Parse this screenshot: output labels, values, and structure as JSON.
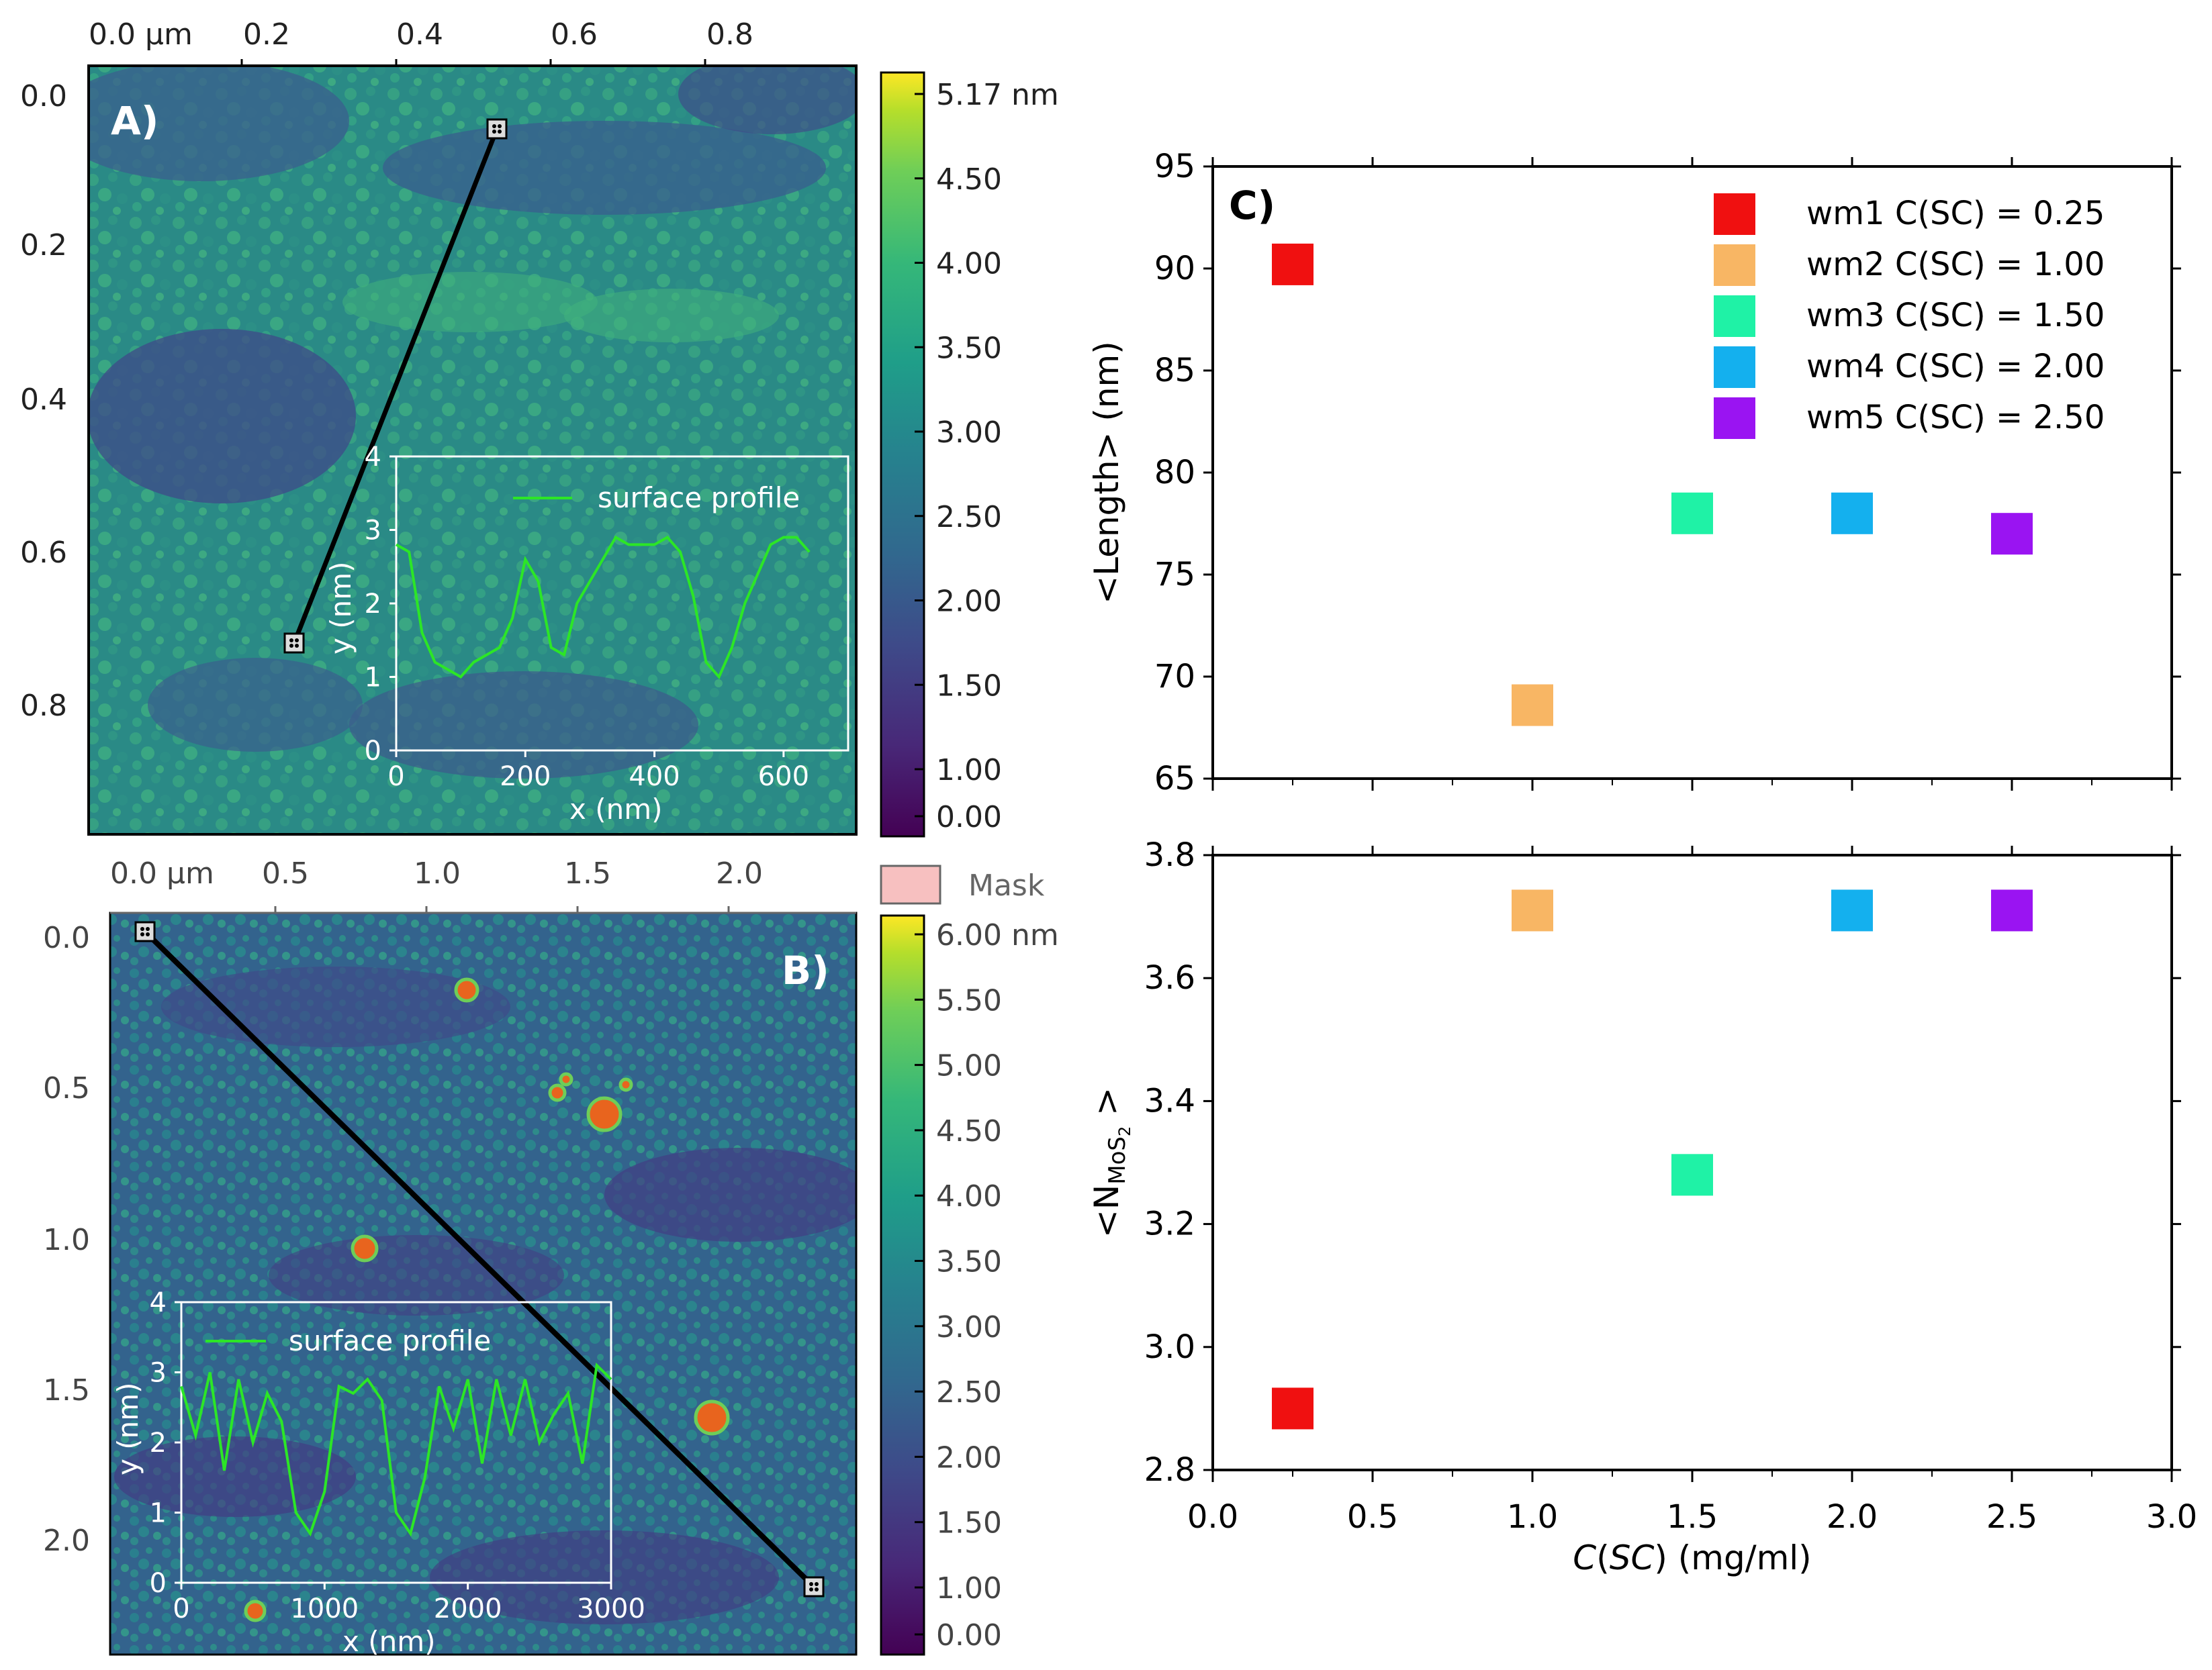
{
  "panel_a": {
    "label": "A)",
    "x_ticks": [
      "0.0 µm",
      "0.2",
      "0.4",
      "0.6",
      "0.8"
    ],
    "y_ticks": [
      "0.0",
      "0.2",
      "0.4",
      "0.6",
      "0.8"
    ],
    "colorbar_ticks": [
      "5.17 nm",
      "4.50",
      "4.00",
      "3.50",
      "3.00",
      "2.50",
      "2.00",
      "1.50",
      "1.00",
      "0.00"
    ],
    "inset": {
      "legend": "surface profile",
      "xlabel": "x (nm)",
      "ylabel": "y (nm)",
      "x_ticks": [
        "0",
        "200",
        "400",
        "600"
      ],
      "y_ticks": [
        "0",
        "1",
        "2",
        "3",
        "4"
      ]
    }
  },
  "panel_b": {
    "label": "B)",
    "x_ticks": [
      "0.0 µm",
      "0.5",
      "1.0",
      "1.5",
      "2.0"
    ],
    "y_ticks": [
      "0.0",
      "0.5",
      "1.0",
      "1.5",
      "2.0"
    ],
    "mask_label": "Mask",
    "colorbar_ticks": [
      "6.00 nm",
      "5.50",
      "5.00",
      "4.50",
      "4.00",
      "3.50",
      "3.00",
      "2.50",
      "2.00",
      "1.50",
      "1.00",
      "0.00"
    ],
    "inset": {
      "legend": "surface profile",
      "xlabel": "x (nm)",
      "ylabel": "y (nm)",
      "x_ticks": [
        "0",
        "1000",
        "2000",
        "3000"
      ],
      "y_ticks": [
        "0",
        "1",
        "2",
        "3",
        "4"
      ]
    }
  },
  "panel_c": {
    "label": "C)",
    "xlabel": "C(SC) (mg/ml)",
    "top_ylabel": "<Length> (nm)",
    "bottom_ylabel": "<N_MoS2>",
    "x_ticks": [
      "0.0",
      "0.5",
      "1.0",
      "1.5",
      "2.0",
      "2.5",
      "3.0"
    ],
    "top_y_ticks": [
      "65",
      "70",
      "75",
      "80",
      "85",
      "90",
      "95"
    ],
    "bottom_y_ticks": [
      "2.8",
      "3.0",
      "3.2",
      "3.4",
      "3.6",
      "3.8"
    ],
    "legend": [
      {
        "label": "wm1 C(SC) = 0.25",
        "color": "#f01010"
      },
      {
        "label": "wm2 C(SC) = 1.00",
        "color": "#f8b664"
      },
      {
        "label": "wm3 C(SC) = 1.50",
        "color": "#1ff2a6"
      },
      {
        "label": "wm4 C(SC) = 2.00",
        "color": "#14b0ee"
      },
      {
        "label": "wm5 C(SC) = 2.50",
        "color": "#9a14f2"
      }
    ]
  },
  "chart_data": [
    {
      "type": "scatter",
      "title": "C) top",
      "xlabel": "C(SC) (mg/ml)",
      "ylabel": "<Length> (nm)",
      "xlim": [
        0.0,
        3.0
      ],
      "ylim": [
        65,
        95
      ],
      "x": [
        0.25,
        1.0,
        1.5,
        2.0,
        2.5
      ],
      "y": [
        90.2,
        68.6,
        78.0,
        78.0,
        77.0
      ],
      "colors": [
        "#f01010",
        "#f8b664",
        "#1ff2a6",
        "#14b0ee",
        "#9a14f2"
      ]
    },
    {
      "type": "scatter",
      "title": "C) bottom",
      "xlabel": "C(SC) (mg/ml)",
      "ylabel": "<N_MoS2>",
      "xlim": [
        0.0,
        3.0
      ],
      "ylim": [
        2.8,
        3.8
      ],
      "x": [
        0.25,
        1.0,
        1.5,
        2.0,
        2.5
      ],
      "y": [
        2.9,
        3.71,
        3.28,
        3.71,
        3.71
      ],
      "colors": [
        "#f01010",
        "#f8b664",
        "#1ff2a6",
        "#14b0ee",
        "#9a14f2"
      ]
    },
    {
      "type": "line",
      "title": "A) inset surface profile",
      "xlabel": "x (nm)",
      "ylabel": "y (nm)",
      "xlim": [
        0,
        700
      ],
      "ylim": [
        0,
        4
      ],
      "x": [
        0,
        20,
        40,
        60,
        80,
        100,
        120,
        140,
        160,
        180,
        200,
        220,
        240,
        260,
        280,
        300,
        320,
        340,
        360,
        380,
        400,
        420,
        440,
        460,
        480,
        500,
        520,
        540,
        560,
        580,
        600,
        620,
        640
      ],
      "y": [
        2.8,
        2.7,
        1.6,
        1.2,
        1.1,
        1.0,
        1.2,
        1.3,
        1.4,
        1.8,
        2.6,
        2.3,
        1.4,
        1.3,
        2.0,
        2.3,
        2.6,
        2.9,
        2.8,
        2.8,
        2.8,
        2.9,
        2.7,
        2.1,
        1.2,
        1.0,
        1.4,
        2.0,
        2.4,
        2.8,
        2.9,
        2.9,
        2.7
      ]
    },
    {
      "type": "line",
      "title": "B) inset surface profile",
      "xlabel": "x (nm)",
      "ylabel": "y (nm)",
      "xlim": [
        0,
        3000
      ],
      "ylim": [
        0,
        4
      ],
      "x": [
        0,
        100,
        200,
        300,
        400,
        500,
        600,
        700,
        800,
        900,
        1000,
        1100,
        1200,
        1300,
        1400,
        1500,
        1600,
        1700,
        1800,
        1900,
        2000,
        2100,
        2200,
        2300,
        2400,
        2500,
        2600,
        2700,
        2800,
        2900,
        3000
      ],
      "y": [
        2.8,
        2.1,
        3.0,
        1.6,
        2.9,
        2.0,
        2.7,
        2.3,
        1.0,
        0.7,
        1.3,
        2.8,
        2.7,
        2.9,
        2.6,
        1.0,
        0.7,
        1.5,
        2.8,
        2.2,
        2.9,
        1.7,
        2.9,
        2.1,
        2.9,
        2.0,
        2.4,
        2.7,
        1.7,
        3.1,
        2.9
      ]
    }
  ]
}
